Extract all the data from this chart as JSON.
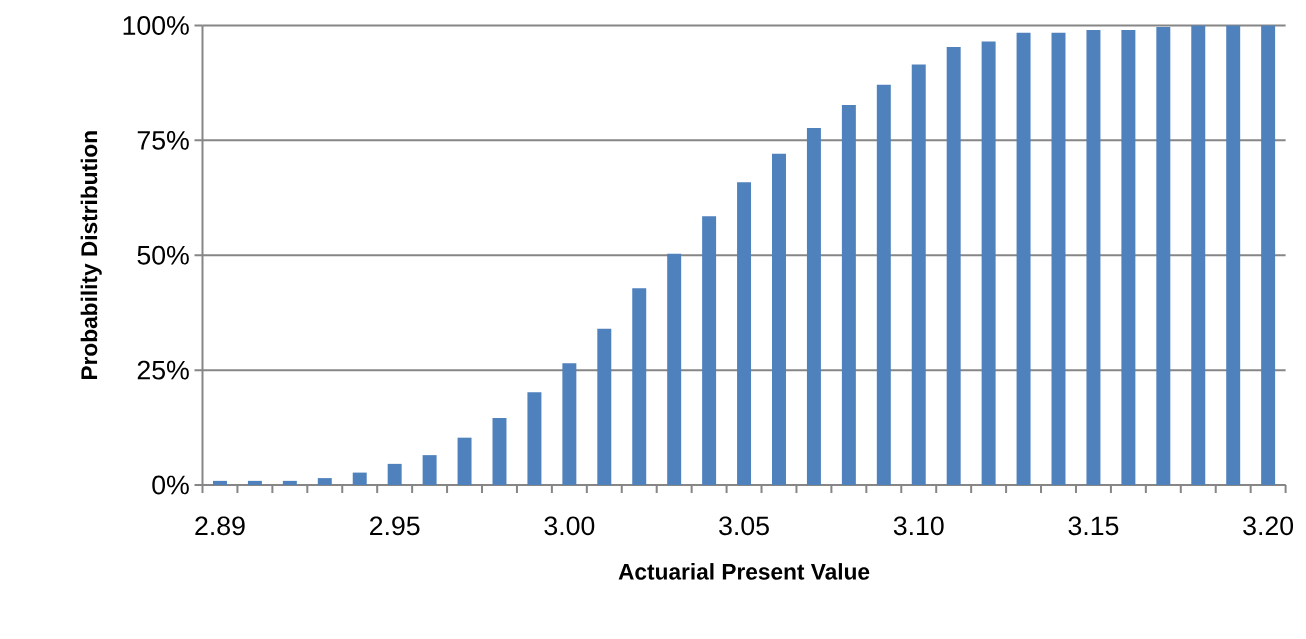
{
  "chart_data": {
    "type": "bar",
    "xlabel": "Actuarial Present Value",
    "ylabel": "Probability Distribution",
    "categories": [
      "2.89",
      null,
      null,
      null,
      null,
      "2.95",
      null,
      null,
      null,
      null,
      "3.00",
      null,
      null,
      null,
      null,
      "3.05",
      null,
      null,
      null,
      null,
      "3.10",
      null,
      null,
      null,
      null,
      "3.15",
      null,
      null,
      null,
      null,
      "3.20"
    ],
    "values": [
      0.9,
      0.9,
      0.9,
      1.5,
      2.7,
      4.6,
      6.5,
      10.3,
      14.6,
      20.2,
      26.5,
      34.0,
      42.8,
      50.3,
      58.5,
      65.9,
      72.1,
      77.7,
      82.7,
      87.1,
      91.5,
      95.3,
      96.5,
      98.4,
      98.4,
      99.0,
      99.0,
      99.7,
      100,
      100,
      100
    ],
    "color": "#4f81bd",
    "ylim": [
      0,
      100
    ],
    "yticks": [
      {
        "value": 0,
        "label": "0%"
      },
      {
        "value": 25,
        "label": "25%"
      },
      {
        "value": 50,
        "label": "50%"
      },
      {
        "value": 75,
        "label": "75%"
      },
      {
        "value": 100,
        "label": "100%"
      }
    ],
    "grid": "y"
  }
}
